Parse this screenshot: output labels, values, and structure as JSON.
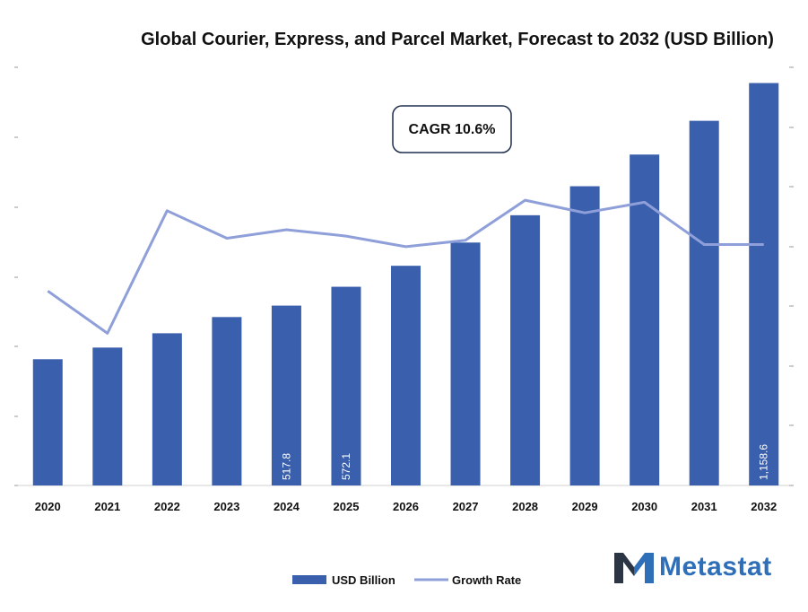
{
  "chart_data": {
    "type": "bar",
    "title": "Global Courier, Express, and Parcel Market, Forecast to 2032 (USD Billion)",
    "categories": [
      "2020",
      "2021",
      "2022",
      "2023",
      "2024",
      "2025",
      "2026",
      "2027",
      "2028",
      "2029",
      "2030",
      "2031",
      "2032"
    ],
    "series": [
      {
        "name": "USD Billion",
        "type": "bar",
        "axis": "left",
        "values": [
          363.5,
          397.0,
          438.2,
          484.9,
          517.8,
          572.1,
          632.5,
          699.4,
          778.0,
          861.5,
          952.7,
          1049.9,
          1158.6
        ],
        "data_labels": {
          "4": "517.8",
          "5": "572.1",
          "12": "1,158.6"
        }
      },
      {
        "name": "Growth Rate",
        "type": "line",
        "axis": "right",
        "values": [
          9.2,
          7.2,
          13.0,
          11.7,
          12.1,
          11.8,
          11.3,
          11.6,
          13.5,
          12.9,
          13.4,
          11.4,
          11.4
        ]
      }
    ],
    "ylim_left": [
      0,
      1160
    ],
    "ylim_right": [
      0,
      20
    ],
    "annotation": "CAGR 10.6%",
    "legend_position": "bottom-center",
    "colors": {
      "bar": "#3a5fad",
      "line": "#8e9fd9",
      "text": "#111111"
    }
  },
  "brand": {
    "name": "Metastat",
    "logo_icon": "m-logo-icon",
    "colors": {
      "dark": "#2c3544",
      "blue": "#2f6fb8"
    }
  }
}
